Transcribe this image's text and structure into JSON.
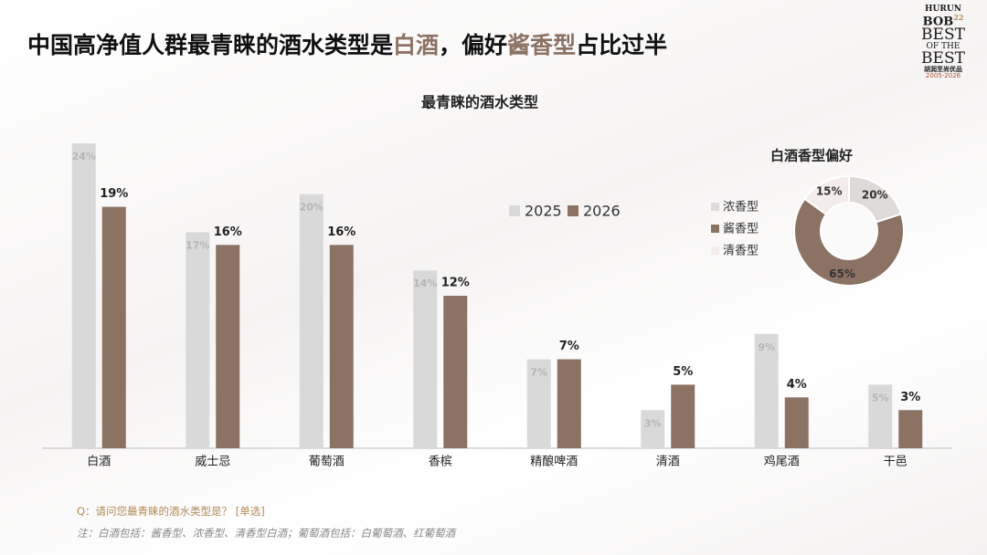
{
  "header": {
    "title_segments": [
      "中国高净值人群最青睐的酒水类型是",
      "白酒",
      "，偏好",
      "酱香型",
      "占比过半"
    ],
    "logo": [
      "HURUN",
      "BOB",
      "22",
      "BEST",
      "OF THE",
      "BEST",
      "胡润至尚优品",
      "2005-2026"
    ]
  },
  "chart_data": [
    {
      "type": "bar",
      "title": "最青睐的酒水类型",
      "categories": [
        "白酒",
        "威士忌",
        "葡萄酒",
        "香槟",
        "精酿啤酒",
        "清酒",
        "鸡尾酒",
        "干邑"
      ],
      "series": [
        {
          "name": "2025",
          "color": "#d9d9d9",
          "values": [
            24,
            17,
            20,
            14,
            7,
            3,
            9,
            5
          ],
          "value_labels": [
            "24%",
            "17%",
            "20%",
            "14%",
            "7%",
            "3%",
            "9%",
            "5%"
          ]
        },
        {
          "name": "2026",
          "color": "#8c7263",
          "values": [
            19,
            16,
            16,
            12,
            7,
            5,
            4,
            3
          ],
          "value_labels": [
            "19%",
            "16%",
            "16%",
            "12%",
            "7%",
            "5%",
            "4%",
            "3%"
          ]
        }
      ]
    },
    {
      "type": "donut",
      "title": "白酒香型偏好",
      "categories": [
        "浓香型",
        "酱香型",
        "清香型"
      ],
      "values": [
        20,
        65,
        15
      ],
      "value_labels": [
        "20%",
        "65%",
        "15%"
      ],
      "colors": [
        "#dedad8",
        "#8c7263",
        "#f3ecea"
      ]
    }
  ],
  "footer": {
    "question": "Q：请问您最青睐的酒水类型是？ [单选]",
    "note": "注：白酒包括：酱香型、浓香型、清香型白酒；葡萄酒包括：白葡萄酒、红葡萄酒"
  }
}
